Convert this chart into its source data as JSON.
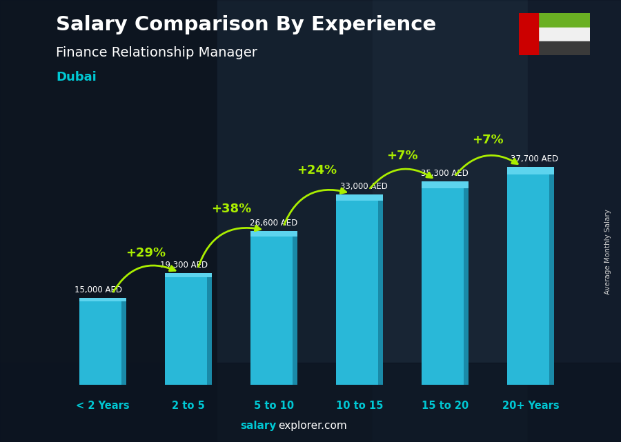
{
  "title_line1": "Salary Comparison By Experience",
  "title_line2": "Finance Relationship Manager",
  "city": "Dubai",
  "categories": [
    "< 2 Years",
    "2 to 5",
    "5 to 10",
    "10 to 15",
    "15 to 20",
    "20+ Years"
  ],
  "values": [
    15000,
    19300,
    26600,
    33000,
    35300,
    37700
  ],
  "labels": [
    "15,000 AED",
    "19,300 AED",
    "26,600 AED",
    "33,000 AED",
    "35,300 AED",
    "37,700 AED"
  ],
  "pct_changes": [
    "+29%",
    "+38%",
    "+24%",
    "+7%",
    "+7%"
  ],
  "bar_color_face": "#29b8d8",
  "bar_color_right": "#1a8aa8",
  "bar_color_top": "#5dd4ee",
  "bg_color": "#1c2333",
  "title_color": "#ffffff",
  "subtitle_color": "#ffffff",
  "city_color": "#00c8d4",
  "label_color": "#ffffff",
  "pct_color": "#aaee00",
  "arrow_color": "#aaee00",
  "xtick_color": "#00c8d4",
  "watermark_salary_color": "#00c8d4",
  "watermark_rest_color": "#ffffff",
  "ylabel": "Average Monthly Salary",
  "ylabel_color": "#cccccc",
  "bar_width": 0.55,
  "ylim_max": 46000,
  "fig_width": 9.0,
  "fig_height": 6.41
}
